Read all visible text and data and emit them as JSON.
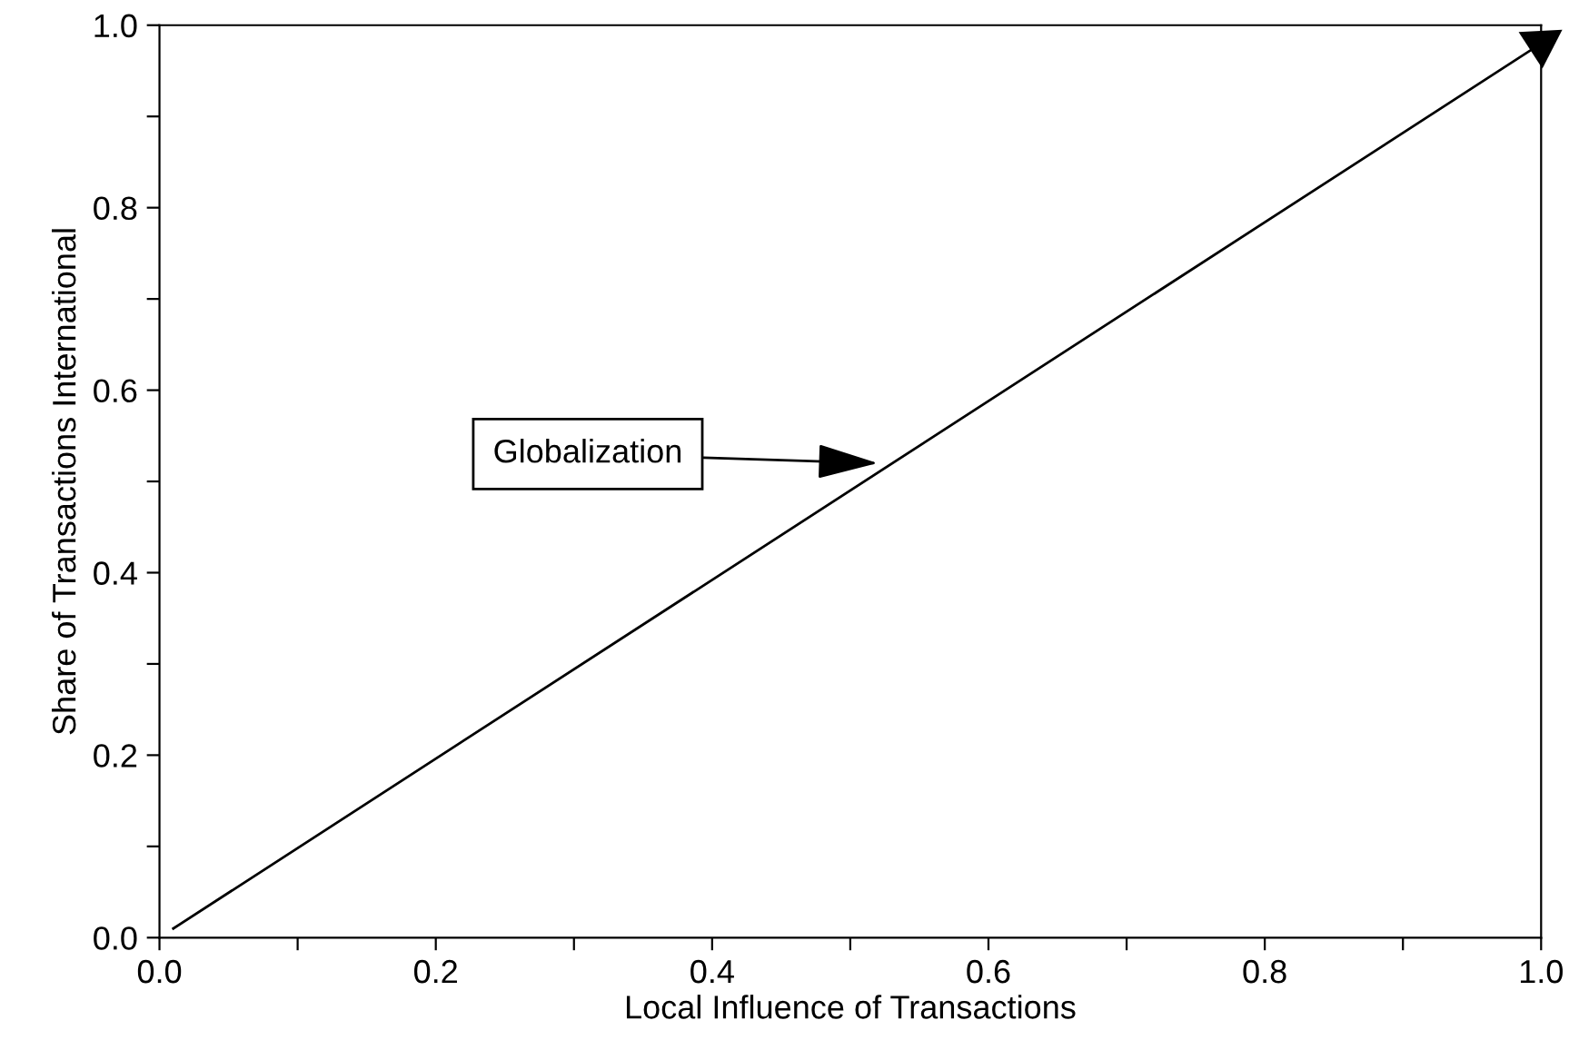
{
  "chart_data": {
    "type": "line",
    "xlabel": "Local Influence of Transactions",
    "ylabel": "Share of Transactions International",
    "x": [
      0.01,
      1.0
    ],
    "series": [
      {
        "color": "#000000",
        "values": [
          0.01,
          0.98
        ]
      }
    ],
    "xlim": [
      0,
      1
    ],
    "ylim": [
      0,
      1
    ],
    "xticks": [
      {
        "value": 0,
        "label": "0.0"
      },
      {
        "value": 0.1,
        "label": null
      },
      0.2,
      {
        "value": 0.3,
        "label": null
      },
      0.4,
      {
        "value": 0.5,
        "label": null
      },
      0.6,
      {
        "value": 0.7,
        "label": null
      },
      0.8,
      {
        "value": 0.9,
        "label": null
      },
      {
        "value": 1,
        "label": "1.0"
      }
    ],
    "yticks": [
      {
        "value": 0,
        "label": "0.0"
      },
      {
        "value": 0.1,
        "label": null
      },
      0.2,
      {
        "value": 0.3,
        "label": null
      },
      0.4,
      {
        "value": 0.5,
        "label": null
      },
      0.6,
      {
        "value": 0.7,
        "label": null
      },
      0.8,
      {
        "value": 0.9,
        "label": null
      },
      {
        "value": 1,
        "label": "1.0"
      }
    ],
    "annotations": [
      {
        "text": "Globalization",
        "x": 0.52,
        "y": 0.52
      }
    ],
    "grid": false,
    "legend": false,
    "line_style": "solid"
  }
}
